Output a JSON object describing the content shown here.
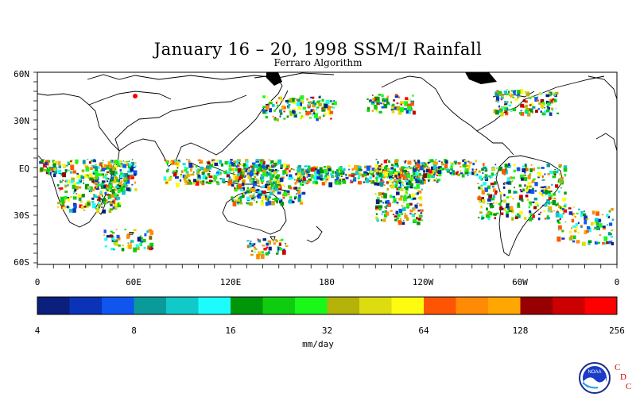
{
  "title": "January 16 – 20, 1998 SSM/I Rainfall",
  "subtitle": "Ferraro Algorithm",
  "map": {
    "lat_ticks": [
      "60N",
      "30N",
      "EQ",
      "30S",
      "60S"
    ],
    "lon_ticks": [
      "0",
      "60E",
      "120E",
      "180",
      "120W",
      "60W",
      "0"
    ]
  },
  "colorbar": {
    "unit": "mm/day",
    "tick_labels": [
      "4",
      "8",
      "16",
      "32",
      "64",
      "128",
      "256"
    ],
    "colors": [
      "#0b1f7d",
      "#0a33b8",
      "#1055ee",
      "#0b9a9a",
      "#11c9c9",
      "#1dfcfc",
      "#00960a",
      "#10cc10",
      "#1af81a",
      "#b5b20a",
      "#dcdc10",
      "#fdfc10",
      "#fe5504",
      "#ff8a05",
      "#ffa600",
      "#960000",
      "#cc0000",
      "#fd0000"
    ]
  },
  "logo": {
    "org_text": "NOAA",
    "letters": [
      "C",
      "D",
      "C"
    ]
  }
}
